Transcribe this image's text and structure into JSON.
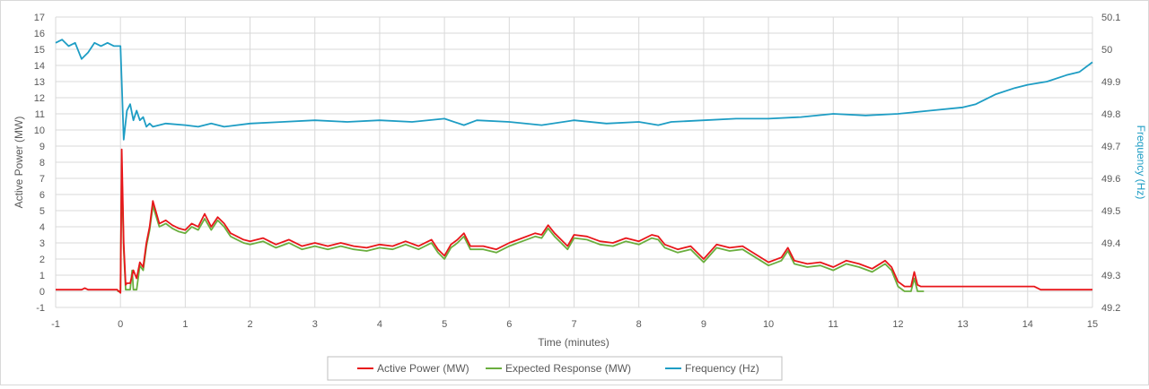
{
  "chart_data": {
    "type": "line",
    "title": "",
    "xlabel": "Time (minutes)",
    "ylabel": "Active Power (MW)",
    "y2label": "Frequency (Hz)",
    "xlim": [
      -1,
      15
    ],
    "ylim": [
      -1,
      17
    ],
    "y2lim": [
      49.2,
      50.1
    ],
    "x_ticks": [
      "-1",
      "0",
      "1",
      "2",
      "3",
      "4",
      "5",
      "6",
      "7",
      "8",
      "9",
      "10",
      "11",
      "12",
      "13",
      "14",
      "15"
    ],
    "y_ticks": [
      "-1",
      "0",
      "1",
      "2",
      "3",
      "4",
      "5",
      "6",
      "7",
      "8",
      "9",
      "10",
      "11",
      "12",
      "13",
      "14",
      "15",
      "16",
      "17"
    ],
    "y2_ticks": [
      "49.2",
      "49.3",
      "49.4",
      "49.5",
      "49.6",
      "49.7",
      "49.8",
      "49.9",
      "50",
      "50.1"
    ],
    "grid": true,
    "legend_position": "bottom",
    "series": [
      {
        "name": "Active Power (MW)",
        "color": "#E8161A",
        "axis": "left",
        "x": [
          -1,
          -0.6,
          -0.55,
          -0.5,
          -0.05,
          0,
          0.02,
          0.05,
          0.08,
          0.1,
          0.15,
          0.2,
          0.25,
          0.3,
          0.35,
          0.4,
          0.45,
          0.5,
          0.6,
          0.7,
          0.8,
          0.9,
          1.0,
          1.1,
          1.2,
          1.3,
          1.4,
          1.5,
          1.6,
          1.7,
          1.8,
          1.9,
          2.0,
          2.2,
          2.4,
          2.6,
          2.8,
          3.0,
          3.2,
          3.4,
          3.6,
          3.8,
          4.0,
          4.2,
          4.4,
          4.6,
          4.8,
          4.9,
          5.0,
          5.1,
          5.2,
          5.3,
          5.4,
          5.6,
          5.8,
          6.0,
          6.2,
          6.4,
          6.5,
          6.6,
          6.7,
          6.8,
          6.9,
          7.0,
          7.2,
          7.4,
          7.6,
          7.8,
          8.0,
          8.2,
          8.3,
          8.4,
          8.6,
          8.8,
          9.0,
          9.2,
          9.4,
          9.6,
          9.8,
          10.0,
          10.2,
          10.3,
          10.4,
          10.6,
          10.8,
          11.0,
          11.2,
          11.4,
          11.6,
          11.8,
          11.9,
          12.0,
          12.1,
          12.2,
          12.25,
          12.3,
          12.35,
          12.5,
          13.0,
          14.1,
          14.2,
          15.0
        ],
        "y": [
          0.1,
          0.1,
          0.2,
          0.1,
          0.1,
          -0.1,
          8.8,
          3.0,
          0.4,
          0.5,
          0.5,
          1.3,
          0.8,
          1.8,
          1.5,
          3.0,
          4.0,
          5.6,
          4.2,
          4.4,
          4.1,
          3.9,
          3.8,
          4.2,
          4.0,
          4.8,
          4.0,
          4.6,
          4.2,
          3.6,
          3.4,
          3.2,
          3.1,
          3.3,
          2.9,
          3.2,
          2.8,
          3.0,
          2.8,
          3.0,
          2.8,
          2.7,
          2.9,
          2.8,
          3.1,
          2.8,
          3.2,
          2.6,
          2.2,
          2.9,
          3.2,
          3.6,
          2.8,
          2.8,
          2.6,
          3.0,
          3.3,
          3.6,
          3.5,
          4.1,
          3.6,
          3.2,
          2.8,
          3.5,
          3.4,
          3.1,
          3.0,
          3.3,
          3.1,
          3.5,
          3.4,
          2.9,
          2.6,
          2.8,
          2.0,
          2.9,
          2.7,
          2.8,
          2.3,
          1.8,
          2.1,
          2.7,
          1.9,
          1.7,
          1.8,
          1.5,
          1.9,
          1.7,
          1.4,
          1.9,
          1.5,
          0.6,
          0.3,
          0.3,
          1.2,
          0.4,
          0.3,
          0.3,
          0.3,
          0.3,
          0.1,
          0.1
        ]
      },
      {
        "name": "Expected Response (MW)",
        "color": "#6AAE3E",
        "axis": "left",
        "x": [
          -0.05,
          0,
          0.02,
          0.05,
          0.08,
          0.1,
          0.15,
          0.18,
          0.2,
          0.22,
          0.25,
          0.3,
          0.35,
          0.4,
          0.45,
          0.5,
          0.6,
          0.7,
          0.8,
          0.9,
          1.0,
          1.1,
          1.2,
          1.3,
          1.4,
          1.5,
          1.6,
          1.7,
          1.8,
          1.9,
          2.0,
          2.2,
          2.4,
          2.6,
          2.8,
          3.0,
          3.2,
          3.4,
          3.6,
          3.8,
          4.0,
          4.2,
          4.4,
          4.6,
          4.8,
          4.9,
          5.0,
          5.1,
          5.2,
          5.3,
          5.4,
          5.6,
          5.8,
          6.0,
          6.2,
          6.4,
          6.5,
          6.6,
          6.7,
          6.8,
          6.9,
          7.0,
          7.2,
          7.4,
          7.6,
          7.8,
          8.0,
          8.2,
          8.3,
          8.4,
          8.6,
          8.8,
          9.0,
          9.2,
          9.4,
          9.6,
          9.8,
          10.0,
          10.2,
          10.3,
          10.4,
          10.6,
          10.8,
          11.0,
          11.2,
          11.4,
          11.6,
          11.8,
          11.9,
          12.0,
          12.1,
          12.2,
          12.25,
          12.3,
          12.35,
          12.4
        ],
        "y": [
          0.0,
          0.0,
          7.8,
          2.6,
          0.1,
          0.1,
          0.1,
          1.3,
          0.1,
          0.1,
          0.1,
          1.6,
          1.3,
          2.8,
          3.8,
          5.3,
          4.0,
          4.2,
          3.9,
          3.7,
          3.6,
          4.0,
          3.8,
          4.5,
          3.8,
          4.4,
          4.0,
          3.4,
          3.2,
          3.0,
          2.9,
          3.1,
          2.7,
          3.0,
          2.6,
          2.8,
          2.6,
          2.8,
          2.6,
          2.5,
          2.7,
          2.6,
          2.9,
          2.6,
          3.0,
          2.4,
          2.0,
          2.7,
          3.0,
          3.4,
          2.6,
          2.6,
          2.4,
          2.8,
          3.1,
          3.4,
          3.3,
          3.9,
          3.4,
          3.0,
          2.6,
          3.3,
          3.2,
          2.9,
          2.8,
          3.1,
          2.9,
          3.3,
          3.2,
          2.7,
          2.4,
          2.6,
          1.8,
          2.7,
          2.5,
          2.6,
          2.1,
          1.6,
          1.9,
          2.5,
          1.7,
          1.5,
          1.6,
          1.3,
          1.7,
          1.5,
          1.2,
          1.7,
          1.3,
          0.3,
          0.0,
          0.0,
          0.8,
          0.0,
          0.0,
          0.0
        ]
      },
      {
        "name": "Frequency (Hz)",
        "color": "#1E9DC4",
        "axis": "right",
        "x": [
          -1,
          -0.9,
          -0.8,
          -0.7,
          -0.6,
          -0.5,
          -0.4,
          -0.3,
          -0.2,
          -0.1,
          0,
          0.02,
          0.05,
          0.1,
          0.15,
          0.2,
          0.25,
          0.3,
          0.35,
          0.4,
          0.45,
          0.5,
          0.7,
          1.0,
          1.2,
          1.4,
          1.6,
          2.0,
          2.5,
          3.0,
          3.5,
          4.0,
          4.5,
          5.0,
          5.3,
          5.5,
          6.0,
          6.5,
          7.0,
          7.5,
          8.0,
          8.3,
          8.5,
          9.0,
          9.5,
          10.0,
          10.5,
          11.0,
          11.5,
          12.0,
          12.5,
          13.0,
          13.2,
          13.5,
          13.8,
          14.0,
          14.3,
          14.6,
          14.8,
          15.0
        ],
        "y": [
          50.02,
          50.03,
          50.01,
          50.02,
          49.97,
          49.99,
          50.02,
          50.01,
          50.02,
          50.01,
          50.01,
          49.9,
          49.72,
          49.81,
          49.83,
          49.78,
          49.81,
          49.78,
          49.79,
          49.76,
          49.77,
          49.76,
          49.77,
          49.765,
          49.76,
          49.77,
          49.76,
          49.77,
          49.775,
          49.78,
          49.775,
          49.78,
          49.775,
          49.785,
          49.765,
          49.78,
          49.775,
          49.765,
          49.78,
          49.77,
          49.775,
          49.765,
          49.775,
          49.78,
          49.785,
          49.785,
          49.79,
          49.8,
          49.795,
          49.8,
          49.81,
          49.82,
          49.83,
          49.86,
          49.88,
          49.89,
          49.9,
          49.92,
          49.93,
          49.96
        ]
      }
    ]
  }
}
